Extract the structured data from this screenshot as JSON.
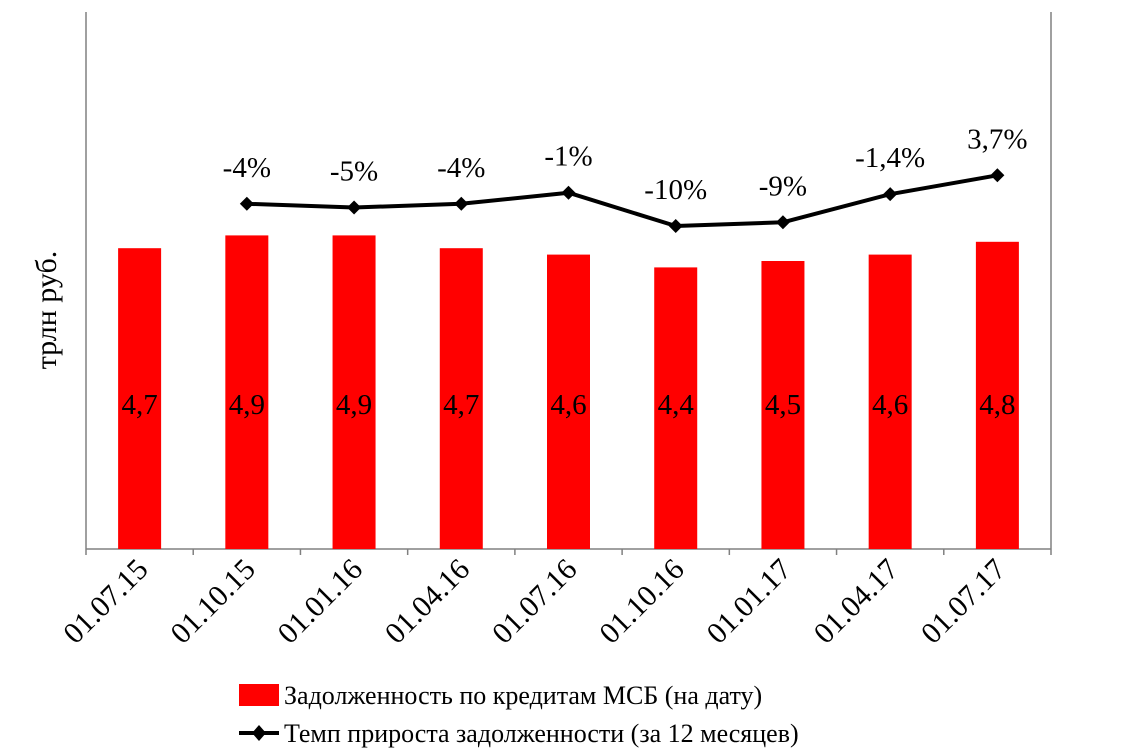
{
  "chart_data": {
    "type": "bar",
    "categories": [
      "01.07.15",
      "01.10.15",
      "01.01.16",
      "01.04.16",
      "01.07.16",
      "01.10.16",
      "01.01.17",
      "01.04.17",
      "01.07.17"
    ],
    "ylabel": "трлн  руб.",
    "series": [
      {
        "name": "Задолженность по кредитам МСБ (на дату)",
        "type": "bar",
        "color": "#ff0000",
        "values": [
          4.7,
          4.9,
          4.9,
          4.7,
          4.6,
          4.4,
          4.5,
          4.6,
          4.8
        ],
        "labels": [
          "4,7",
          "4,9",
          "4,9",
          "4,7",
          "4,6",
          "4,4",
          "4,5",
          "4,6",
          "4,8"
        ]
      },
      {
        "name": "Темп прироста задолженности (за 12 месяцев)",
        "type": "line",
        "color": "#000000",
        "marker": "diamond",
        "values": [
          null,
          -4,
          -5,
          -4,
          -1,
          -10,
          -9,
          -1.4,
          3.7
        ],
        "labels": [
          "",
          "-4%",
          "-5%",
          "-4%",
          "-1%",
          "-10%",
          "-9%",
          "-1,4%",
          "3,7%"
        ]
      }
    ],
    "legend_position": "bottom",
    "grid": false
  }
}
